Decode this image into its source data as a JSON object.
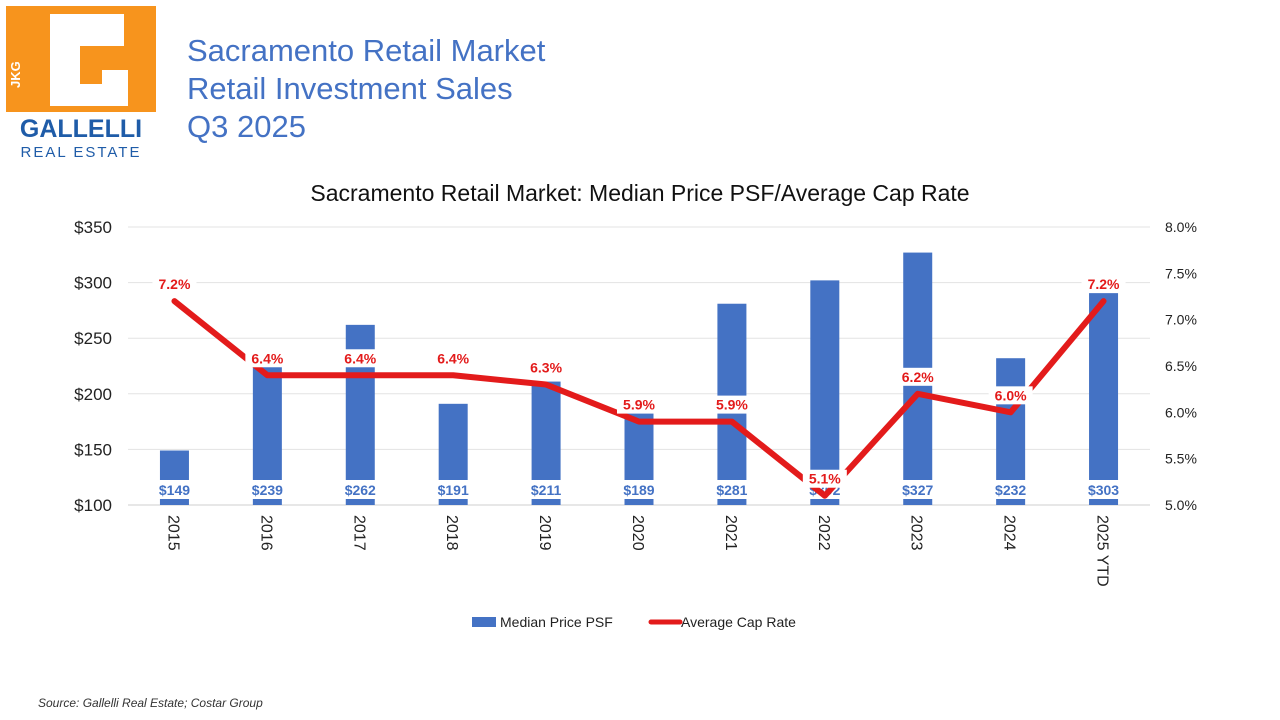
{
  "header": {
    "line1": "Sacramento Retail Market",
    "line2": "Retail Investment Sales",
    "line3": "Q3 2025"
  },
  "logo": {
    "mark_letters": "JKG",
    "company": "GALLELLI",
    "subtitle": "REAL ESTATE",
    "colors": {
      "orange": "#f7941d",
      "blue": "#1f5ca8"
    }
  },
  "source": "Source: Gallelli Real Estate; Costar Group",
  "chart_data": {
    "type": "bar",
    "title": "Sacramento Retail Market: Median Price PSF/Average Cap Rate",
    "categories": [
      "2015",
      "2016",
      "2017",
      "2018",
      "2019",
      "2020",
      "2021",
      "2022",
      "2023",
      "2024",
      "2025 YTD"
    ],
    "series": [
      {
        "name": "Median Price PSF",
        "type": "bar",
        "axis": "left",
        "color": "#4472c4",
        "values": [
          149,
          239,
          262,
          191,
          211,
          189,
          281,
          302,
          327,
          232,
          303
        ],
        "labels": [
          "$149",
          "$239",
          "$262",
          "$191",
          "$211",
          "$189",
          "$281",
          "$302",
          "$327",
          "$232",
          "$303"
        ]
      },
      {
        "name": "Average Cap Rate",
        "type": "line",
        "axis": "right",
        "color": "#e31b1b",
        "values": [
          7.2,
          6.4,
          6.4,
          6.4,
          6.3,
          5.9,
          5.9,
          5.1,
          6.2,
          6.0,
          7.2
        ],
        "labels": [
          "7.2%",
          "6.4%",
          "6.4%",
          "6.4%",
          "6.3%",
          "5.9%",
          "5.9%",
          "5.1%",
          "6.2%",
          "6.0%",
          "7.2%"
        ]
      }
    ],
    "y_left": {
      "min": 100,
      "max": 350,
      "ticks": [
        "$100",
        "$150",
        "$200",
        "$250",
        "$300",
        "$350"
      ]
    },
    "y_right": {
      "min": 5.0,
      "max": 8.0,
      "ticks": [
        "5.0%",
        "5.5%",
        "6.0%",
        "6.5%",
        "7.0%",
        "7.5%",
        "8.0%"
      ]
    },
    "grid": true,
    "legend": "bottom"
  }
}
